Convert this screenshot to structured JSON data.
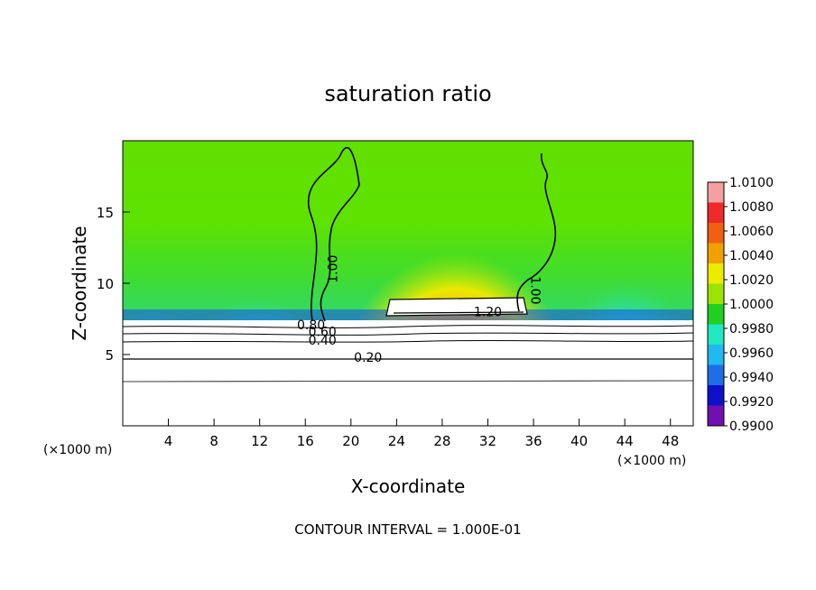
{
  "chart_data": {
    "type": "heatmap",
    "title": "saturation ratio",
    "xlabel": "X-coordinate",
    "ylabel": "Z-coordinate",
    "x_unit_left": "(×1000 m)",
    "x_unit_right": "(×1000 m)",
    "xlim": [
      0,
      50
    ],
    "ylim": [
      0,
      20
    ],
    "xticks": [
      4,
      8,
      12,
      16,
      20,
      24,
      28,
      32,
      36,
      40,
      44,
      48
    ],
    "yticks": [
      5,
      10,
      15
    ],
    "colorbar": {
      "min": 0.99,
      "max": 1.01,
      "labels": [
        "1.0100",
        "1.0080",
        "1.0060",
        "1.0040",
        "1.0020",
        "1.0000",
        "0.9980",
        "0.9960",
        "0.9940",
        "0.9920",
        "0.9900"
      ],
      "colors": [
        "#f4a0a0",
        "#ee2a2a",
        "#f06010",
        "#f2a000",
        "#ecec00",
        "#9ce400",
        "#20d020",
        "#20e8c0",
        "#22b8f0",
        "#1e6ee8",
        "#1010c8",
        "#7010b0"
      ]
    },
    "contours": [
      {
        "label": "0.20",
        "z": 4.8
      },
      {
        "label": "0.40",
        "z": 6.0
      },
      {
        "label": "0.60",
        "z": 6.6
      },
      {
        "label": "0.80",
        "z": 7.1
      },
      {
        "label": "1.00",
        "z": 11.0
      },
      {
        "label": "1.00",
        "z": 9.5
      },
      {
        "label": "1.20",
        "z": 8.0
      }
    ],
    "footer": "CONTOUR INTERVAL = 1.000E-01"
  }
}
